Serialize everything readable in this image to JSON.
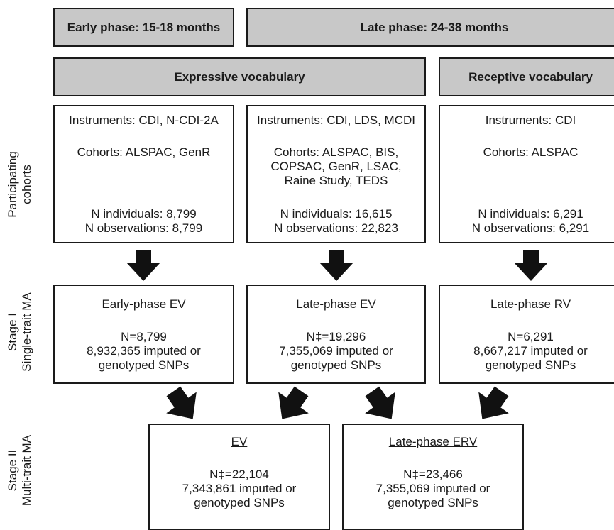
{
  "phases": {
    "early": "Early phase: 15-18 months",
    "late": "Late phase: 24-38 months"
  },
  "categories": {
    "expressive": "Expressive vocabulary",
    "receptive": "Receptive vocabulary"
  },
  "row_labels": {
    "cohorts": [
      "Participating",
      "cohorts"
    ],
    "stage1": [
      "Stage I",
      "Single-trait MA"
    ],
    "stage2": [
      "Stage II",
      "Multi-trait MA"
    ]
  },
  "cohort_boxes": [
    {
      "instruments": "Instruments: CDI, N-CDI-2A",
      "cohorts": [
        "Cohorts: ALSPAC, GenR"
      ],
      "n_individuals": "N individuals: 8,799",
      "n_observations": "N observations: 8,799"
    },
    {
      "instruments": "Instruments: CDI, LDS, MCDI",
      "cohorts": [
        "Cohorts: ALSPAC, BIS,",
        "COPSAC, GenR, LSAC,",
        "Raine Study, TEDS"
      ],
      "n_individuals": "N individuals: 16,615",
      "n_observations": "N observations: 22,823"
    },
    {
      "instruments": "Instruments: CDI",
      "cohorts": [
        "Cohorts: ALSPAC"
      ],
      "n_individuals": "N individuals: 6,291",
      "n_observations": "N observations: 6,291"
    }
  ],
  "stage1_boxes": [
    {
      "title": "Early-phase EV",
      "n": "N=8,799",
      "snps1": "8,932,365 imputed or",
      "snps2": "genotyped SNPs"
    },
    {
      "title": "Late-phase EV",
      "n": "N‡=19,296",
      "snps1": "7,355,069 imputed or",
      "snps2": "genotyped SNPs"
    },
    {
      "title": "Late-phase RV",
      "n": "N=6,291",
      "snps1": "8,667,217 imputed or",
      "snps2": "genotyped SNPs"
    }
  ],
  "stage2_boxes": [
    {
      "title": "EV",
      "n": "N‡=22,104",
      "snps1": "7,343,861 imputed or",
      "snps2": "genotyped SNPs"
    },
    {
      "title": "Late-phase ERV",
      "n": "N‡=23,466",
      "snps1": "7,355,069 imputed or",
      "snps2": "genotyped SNPs"
    }
  ],
  "colors": {
    "header_fill": "#c8c8c8",
    "border": "#1a1a1a",
    "arrow": "#111111"
  }
}
